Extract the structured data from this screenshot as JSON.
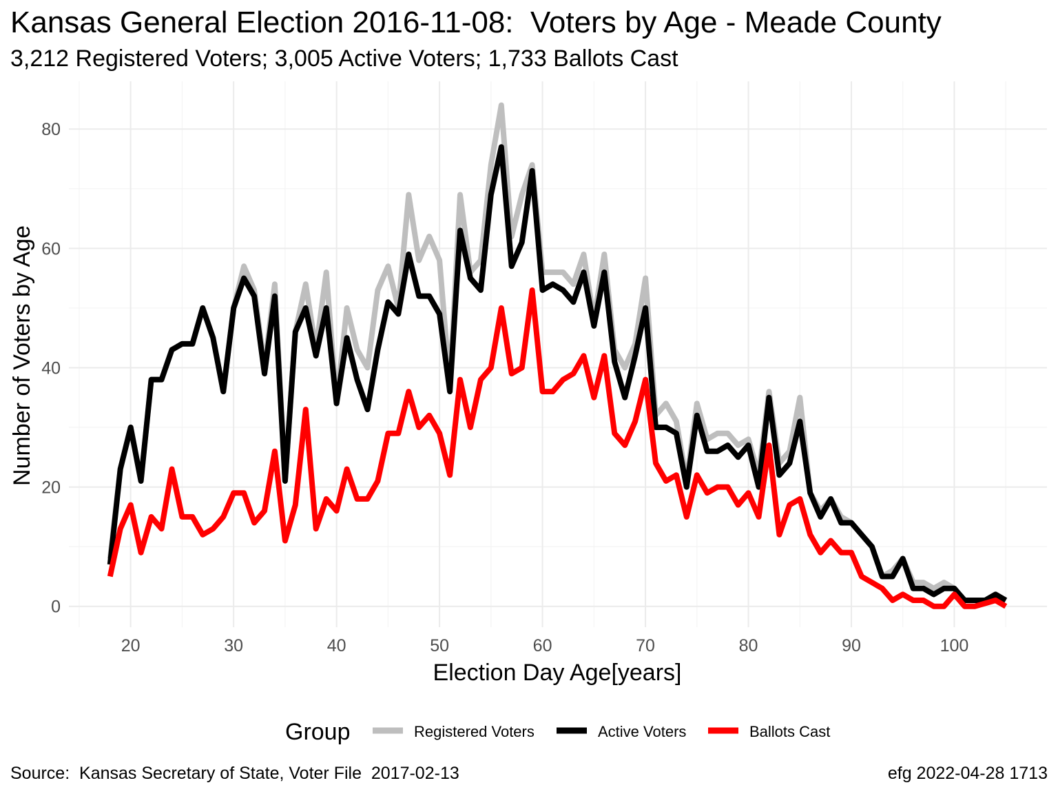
{
  "title": "Kansas General Election 2016-11-08:  Voters by Age - Meade County",
  "subtitle": "3,212 Registered Voters; 3,005 Active Voters; 1,733 Ballots Cast",
  "caption_left": "Source:  Kansas Secretary of State, Voter File  2017-02-13",
  "caption_right": "efg 2022-04-28 1713",
  "legend": {
    "title": "Group",
    "items": [
      "Registered Voters",
      "Active Voters",
      "Ballots Cast"
    ]
  },
  "colors": {
    "registered": "#BEBEBE",
    "active": "#000000",
    "ballots": "#FF0000",
    "grid_major": "#EBEBEB",
    "grid_minor": "#F4F4F4",
    "tick_text": "#4D4D4D"
  },
  "chart_data": {
    "type": "line",
    "xlabel": "Election Day Age[years]",
    "ylabel": "Number of Voters by Age",
    "xlim": [
      14,
      109
    ],
    "ylim": [
      -3.5,
      88
    ],
    "x_ticks": [
      20,
      30,
      40,
      50,
      60,
      70,
      80,
      90,
      100
    ],
    "y_ticks": [
      0,
      20,
      40,
      60,
      80
    ],
    "grid": true,
    "legend_position": "bottom",
    "x_start": 18,
    "series": [
      {
        "name": "Registered Voters",
        "values": [
          8,
          23,
          30,
          21,
          38,
          38,
          43,
          44,
          44,
          50,
          45,
          36,
          50,
          57,
          53,
          40,
          54,
          21,
          46,
          54,
          43,
          56,
          34,
          50,
          43,
          40,
          53,
          57,
          50,
          69,
          58,
          62,
          58,
          37,
          69,
          56,
          58,
          74,
          84,
          62,
          69,
          74,
          56,
          56,
          56,
          54,
          59,
          48,
          59,
          43,
          40,
          44,
          55,
          32,
          34,
          31,
          21,
          34,
          28,
          29,
          29,
          27,
          28,
          22,
          36,
          24,
          26,
          35,
          19,
          16,
          18,
          15,
          14,
          12,
          10,
          5,
          6,
          8,
          4,
          4,
          3,
          4,
          3,
          1,
          1,
          1,
          2,
          1
        ],
        "color": "#BEBEBE"
      },
      {
        "name": "Active Voters",
        "values": [
          7,
          23,
          30,
          21,
          38,
          38,
          43,
          44,
          44,
          50,
          45,
          36,
          50,
          55,
          52,
          39,
          52,
          21,
          46,
          50,
          42,
          50,
          34,
          45,
          38,
          33,
          43,
          51,
          49,
          59,
          52,
          52,
          49,
          36,
          63,
          55,
          53,
          69,
          77,
          57,
          61,
          73,
          53,
          54,
          53,
          51,
          56,
          47,
          56,
          41,
          35,
          42,
          50,
          30,
          30,
          29,
          20,
          32,
          26,
          26,
          27,
          25,
          27,
          20,
          35,
          22,
          24,
          31,
          19,
          15,
          18,
          14,
          14,
          12,
          10,
          5,
          5,
          8,
          3,
          3,
          2,
          3,
          3,
          1,
          1,
          1,
          2,
          1
        ],
        "color": "#000000"
      },
      {
        "name": "Ballots Cast",
        "values": [
          5,
          13,
          17,
          9,
          15,
          13,
          23,
          15,
          15,
          12,
          13,
          15,
          19,
          19,
          14,
          16,
          26,
          11,
          17,
          33,
          13,
          18,
          16,
          23,
          18,
          18,
          21,
          29,
          29,
          36,
          30,
          32,
          29,
          22,
          38,
          30,
          38,
          40,
          50,
          39,
          40,
          53,
          36,
          36,
          38,
          39,
          42,
          35,
          42,
          29,
          27,
          31,
          38,
          24,
          21,
          22,
          15,
          22,
          19,
          20,
          20,
          17,
          19,
          15,
          27,
          12,
          17,
          18,
          12,
          9,
          11,
          9,
          9,
          5,
          4,
          3,
          1,
          2,
          1,
          1,
          0,
          0,
          2,
          0,
          0,
          0.5,
          1,
          0
        ],
        "color": "#FF0000"
      }
    ]
  }
}
